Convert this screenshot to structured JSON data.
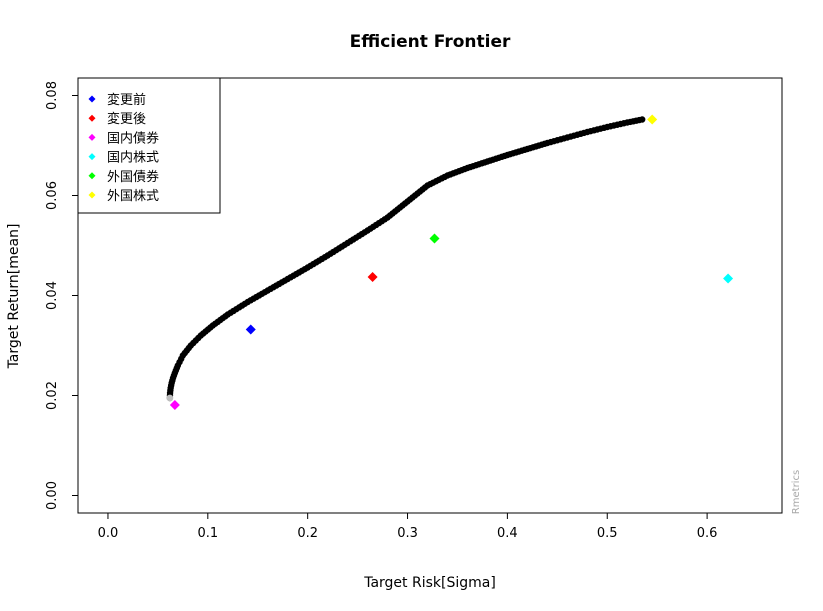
{
  "chart_data": {
    "type": "scatter",
    "title": "Efficient Frontier",
    "xlabel": "Target Risk[Sigma]",
    "ylabel": "Target Return[mean]",
    "credit": "Rmetrics",
    "xlim": [
      -0.03,
      0.675
    ],
    "ylim": [
      -0.0035,
      0.0835
    ],
    "xticks": [
      0.0,
      0.1,
      0.2,
      0.3,
      0.4,
      0.5,
      0.6
    ],
    "xtick_labels": [
      "0.0",
      "0.1",
      "0.2",
      "0.3",
      "0.4",
      "0.5",
      "0.6"
    ],
    "yticks": [
      0.0,
      0.02,
      0.04,
      0.06,
      0.08
    ],
    "ytick_labels": [
      "0.00",
      "0.02",
      "0.04",
      "0.06",
      "0.08"
    ],
    "grid": false,
    "legend_position": "top-left",
    "frontier": {
      "color": "#000000",
      "start_point_color": "#bebebe",
      "points": [
        [
          0.062,
          0.0195
        ],
        [
          0.0622,
          0.0205
        ],
        [
          0.0628,
          0.0215
        ],
        [
          0.0638,
          0.0225
        ],
        [
          0.0652,
          0.0235
        ],
        [
          0.067,
          0.0245
        ],
        [
          0.07,
          0.026
        ],
        [
          0.075,
          0.028
        ],
        [
          0.083,
          0.03
        ],
        [
          0.093,
          0.032
        ],
        [
          0.105,
          0.034
        ],
        [
          0.12,
          0.0362
        ],
        [
          0.14,
          0.0387
        ],
        [
          0.16,
          0.041
        ],
        [
          0.18,
          0.0433
        ],
        [
          0.2,
          0.0456
        ],
        [
          0.22,
          0.048
        ],
        [
          0.24,
          0.0505
        ],
        [
          0.26,
          0.053
        ],
        [
          0.28,
          0.0556
        ],
        [
          0.3,
          0.0588
        ],
        [
          0.32,
          0.062
        ],
        [
          0.34,
          0.064
        ],
        [
          0.36,
          0.0655
        ],
        [
          0.38,
          0.0668
        ],
        [
          0.4,
          0.0681
        ],
        [
          0.42,
          0.0693
        ],
        [
          0.44,
          0.0705
        ],
        [
          0.46,
          0.0716
        ],
        [
          0.48,
          0.0727
        ],
        [
          0.5,
          0.0737
        ],
        [
          0.52,
          0.0746
        ],
        [
          0.535,
          0.0752
        ]
      ]
    },
    "series": [
      {
        "name": "変更前",
        "color": "#0000ff",
        "x": 0.143,
        "y": 0.0332
      },
      {
        "name": "変更後",
        "color": "#ff0000",
        "x": 0.265,
        "y": 0.0437
      },
      {
        "name": "国内債券",
        "color": "#ff00ff",
        "x": 0.067,
        "y": 0.0181
      },
      {
        "name": "国内株式",
        "color": "#00ffff",
        "x": 0.621,
        "y": 0.0434
      },
      {
        "name": "外国債券",
        "color": "#00ff00",
        "x": 0.327,
        "y": 0.0514
      },
      {
        "name": "外国株式",
        "color": "#ffff00",
        "x": 0.545,
        "y": 0.0752
      }
    ]
  }
}
